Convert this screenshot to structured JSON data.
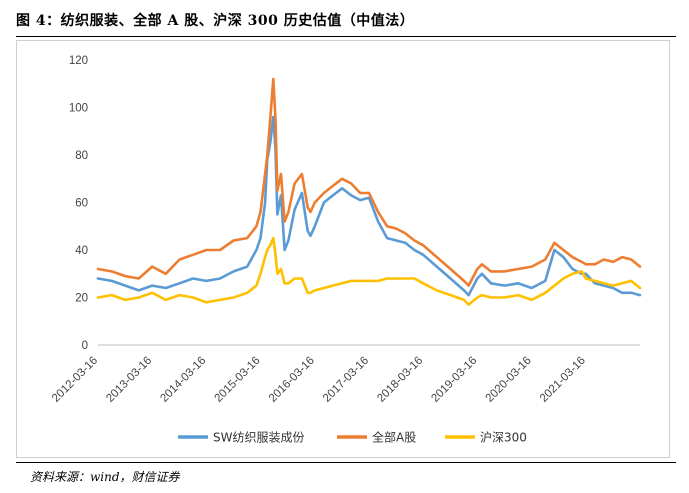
{
  "figure": {
    "title": "图 4：纺织服装、全部 A 股、沪深 300 历史估值（中值法）",
    "source": "资料来源：wind，财信证券"
  },
  "chart_data": {
    "type": "line",
    "ylim": [
      0,
      120
    ],
    "yticks": [
      0,
      20,
      40,
      60,
      80,
      100,
      120
    ],
    "xlim": [
      "2012-03-16",
      "2022-03-16"
    ],
    "xticks": [
      "2012-03-16",
      "2013-03-16",
      "2014-03-16",
      "2015-03-16",
      "2016-03-16",
      "2017-03-16",
      "2018-03-16",
      "2019-03-16",
      "2020-03-16",
      "2021-03-16"
    ],
    "legend_position": "bottom",
    "grid": false,
    "series": [
      {
        "name": "SW纺织服装成份",
        "color": "#5B9BD5",
        "points": [
          [
            "2012-03-16",
            28
          ],
          [
            "2012-06-16",
            27
          ],
          [
            "2012-09-16",
            25
          ],
          [
            "2012-12-16",
            23
          ],
          [
            "2013-03-16",
            25
          ],
          [
            "2013-06-16",
            24
          ],
          [
            "2013-09-16",
            26
          ],
          [
            "2013-12-16",
            28
          ],
          [
            "2014-03-16",
            27
          ],
          [
            "2014-06-16",
            28
          ],
          [
            "2014-09-16",
            31
          ],
          [
            "2014-12-16",
            33
          ],
          [
            "2015-02-16",
            40
          ],
          [
            "2015-03-16",
            45
          ],
          [
            "2015-04-16",
            60
          ],
          [
            "2015-05-01",
            78
          ],
          [
            "2015-05-20",
            85
          ],
          [
            "2015-06-10",
            96
          ],
          [
            "2015-06-25",
            82
          ],
          [
            "2015-07-08",
            55
          ],
          [
            "2015-08-01",
            63
          ],
          [
            "2015-08-25",
            40
          ],
          [
            "2015-09-20",
            44
          ],
          [
            "2015-11-01",
            57
          ],
          [
            "2015-12-20",
            64
          ],
          [
            "2016-01-28",
            48
          ],
          [
            "2016-02-16",
            46
          ],
          [
            "2016-03-16",
            50
          ],
          [
            "2016-05-16",
            60
          ],
          [
            "2016-07-16",
            63
          ],
          [
            "2016-09-16",
            66
          ],
          [
            "2016-11-16",
            63
          ],
          [
            "2017-01-16",
            61
          ],
          [
            "2017-03-16",
            62
          ],
          [
            "2017-05-16",
            52
          ],
          [
            "2017-07-16",
            45
          ],
          [
            "2017-09-16",
            44
          ],
          [
            "2017-11-16",
            43
          ],
          [
            "2018-01-16",
            40
          ],
          [
            "2018-03-16",
            38
          ],
          [
            "2018-06-16",
            33
          ],
          [
            "2018-09-16",
            28
          ],
          [
            "2018-12-16",
            23
          ],
          [
            "2019-01-16",
            21
          ],
          [
            "2019-03-16",
            28
          ],
          [
            "2019-04-16",
            30
          ],
          [
            "2019-06-16",
            26
          ],
          [
            "2019-09-16",
            25
          ],
          [
            "2019-12-16",
            26
          ],
          [
            "2020-03-16",
            24
          ],
          [
            "2020-06-16",
            27
          ],
          [
            "2020-08-16",
            40
          ],
          [
            "2020-10-16",
            37
          ],
          [
            "2020-12-16",
            32
          ],
          [
            "2021-02-16",
            30
          ],
          [
            "2021-03-16",
            30
          ],
          [
            "2021-05-16",
            26
          ],
          [
            "2021-07-16",
            25
          ],
          [
            "2021-09-16",
            24
          ],
          [
            "2021-11-16",
            22
          ],
          [
            "2022-01-16",
            22
          ],
          [
            "2022-03-16",
            21
          ]
        ]
      },
      {
        "name": "全部A股",
        "color": "#ED7D31",
        "points": [
          [
            "2012-03-16",
            32
          ],
          [
            "2012-06-16",
            31
          ],
          [
            "2012-09-16",
            29
          ],
          [
            "2012-12-16",
            28
          ],
          [
            "2013-03-16",
            33
          ],
          [
            "2013-06-16",
            30
          ],
          [
            "2013-09-16",
            36
          ],
          [
            "2013-12-16",
            38
          ],
          [
            "2014-03-16",
            40
          ],
          [
            "2014-06-16",
            40
          ],
          [
            "2014-09-16",
            44
          ],
          [
            "2014-12-16",
            45
          ],
          [
            "2015-02-16",
            50
          ],
          [
            "2015-03-16",
            56
          ],
          [
            "2015-04-16",
            72
          ],
          [
            "2015-05-01",
            80
          ],
          [
            "2015-05-20",
            95
          ],
          [
            "2015-06-10",
            112
          ],
          [
            "2015-06-25",
            95
          ],
          [
            "2015-07-08",
            65
          ],
          [
            "2015-08-01",
            72
          ],
          [
            "2015-08-25",
            52
          ],
          [
            "2015-09-20",
            56
          ],
          [
            "2015-11-01",
            68
          ],
          [
            "2015-12-20",
            72
          ],
          [
            "2016-01-28",
            58
          ],
          [
            "2016-02-16",
            56
          ],
          [
            "2016-03-16",
            60
          ],
          [
            "2016-05-16",
            64
          ],
          [
            "2016-07-16",
            67
          ],
          [
            "2016-09-16",
            70
          ],
          [
            "2016-11-16",
            68
          ],
          [
            "2017-01-16",
            64
          ],
          [
            "2017-03-16",
            64
          ],
          [
            "2017-05-16",
            56
          ],
          [
            "2017-07-16",
            50
          ],
          [
            "2017-09-16",
            49
          ],
          [
            "2017-11-16",
            47
          ],
          [
            "2018-01-16",
            44
          ],
          [
            "2018-03-16",
            42
          ],
          [
            "2018-06-16",
            37
          ],
          [
            "2018-09-16",
            32
          ],
          [
            "2018-12-16",
            27
          ],
          [
            "2019-01-16",
            25
          ],
          [
            "2019-03-16",
            32
          ],
          [
            "2019-04-16",
            34
          ],
          [
            "2019-06-16",
            31
          ],
          [
            "2019-09-16",
            31
          ],
          [
            "2019-12-16",
            32
          ],
          [
            "2020-03-16",
            33
          ],
          [
            "2020-06-16",
            36
          ],
          [
            "2020-08-16",
            43
          ],
          [
            "2020-10-16",
            40
          ],
          [
            "2020-12-16",
            37
          ],
          [
            "2021-02-16",
            35
          ],
          [
            "2021-03-16",
            34
          ],
          [
            "2021-05-16",
            34
          ],
          [
            "2021-07-16",
            36
          ],
          [
            "2021-09-16",
            35
          ],
          [
            "2021-11-16",
            37
          ],
          [
            "2022-01-16",
            36
          ],
          [
            "2022-03-16",
            33
          ]
        ]
      },
      {
        "name": "沪深300",
        "color": "#FFC000",
        "points": [
          [
            "2012-03-16",
            20
          ],
          [
            "2012-06-16",
            21
          ],
          [
            "2012-09-16",
            19
          ],
          [
            "2012-12-16",
            20
          ],
          [
            "2013-03-16",
            22
          ],
          [
            "2013-06-16",
            19
          ],
          [
            "2013-09-16",
            21
          ],
          [
            "2013-12-16",
            20
          ],
          [
            "2014-03-16",
            18
          ],
          [
            "2014-06-16",
            19
          ],
          [
            "2014-09-16",
            20
          ],
          [
            "2014-12-16",
            22
          ],
          [
            "2015-02-16",
            25
          ],
          [
            "2015-03-16",
            30
          ],
          [
            "2015-04-16",
            37
          ],
          [
            "2015-05-01",
            40
          ],
          [
            "2015-05-20",
            42
          ],
          [
            "2015-06-10",
            45
          ],
          [
            "2015-06-25",
            38
          ],
          [
            "2015-07-08",
            30
          ],
          [
            "2015-08-01",
            32
          ],
          [
            "2015-08-25",
            26
          ],
          [
            "2015-09-20",
            26
          ],
          [
            "2015-11-01",
            28
          ],
          [
            "2015-12-20",
            28
          ],
          [
            "2016-01-28",
            22
          ],
          [
            "2016-02-16",
            22
          ],
          [
            "2016-03-16",
            23
          ],
          [
            "2016-05-16",
            24
          ],
          [
            "2016-07-16",
            25
          ],
          [
            "2016-09-16",
            26
          ],
          [
            "2016-11-16",
            27
          ],
          [
            "2017-01-16",
            27
          ],
          [
            "2017-03-16",
            27
          ],
          [
            "2017-05-16",
            27
          ],
          [
            "2017-07-16",
            28
          ],
          [
            "2017-09-16",
            28
          ],
          [
            "2017-11-16",
            28
          ],
          [
            "2018-01-16",
            28
          ],
          [
            "2018-03-16",
            26
          ],
          [
            "2018-06-16",
            23
          ],
          [
            "2018-09-16",
            21
          ],
          [
            "2018-12-16",
            19
          ],
          [
            "2019-01-16",
            17
          ],
          [
            "2019-03-16",
            20
          ],
          [
            "2019-04-16",
            21
          ],
          [
            "2019-06-16",
            20
          ],
          [
            "2019-09-16",
            20
          ],
          [
            "2019-12-16",
            21
          ],
          [
            "2020-03-16",
            19
          ],
          [
            "2020-06-16",
            22
          ],
          [
            "2020-08-16",
            25
          ],
          [
            "2020-10-16",
            28
          ],
          [
            "2020-12-16",
            30
          ],
          [
            "2021-02-16",
            31
          ],
          [
            "2021-03-16",
            28
          ],
          [
            "2021-05-16",
            27
          ],
          [
            "2021-07-16",
            26
          ],
          [
            "2021-09-16",
            25
          ],
          [
            "2021-11-16",
            26
          ],
          [
            "2022-01-16",
            27
          ],
          [
            "2022-03-16",
            24
          ]
        ]
      }
    ]
  }
}
